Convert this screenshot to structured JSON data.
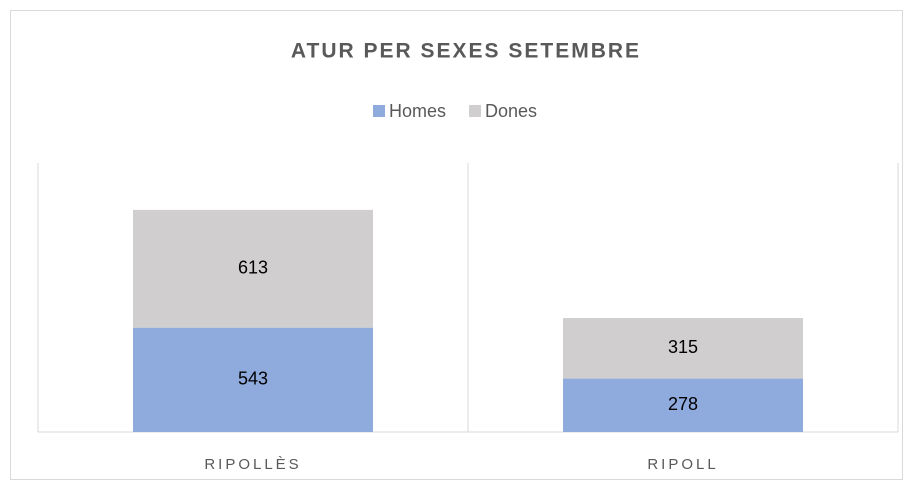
{
  "chart_data": {
    "type": "stacked_bar",
    "title": "ATUR PER SEXES SETEMBRE",
    "categories": [
      "RIPOLLÈS",
      "RIPOLL"
    ],
    "series": [
      {
        "name": "Homes",
        "color": "#8faadc",
        "values": [
          543,
          278
        ]
      },
      {
        "name": "Dones",
        "color": "#d0cece",
        "values": [
          613,
          315
        ]
      }
    ],
    "ylim": [
      0,
      1400
    ],
    "legend": "top"
  }
}
